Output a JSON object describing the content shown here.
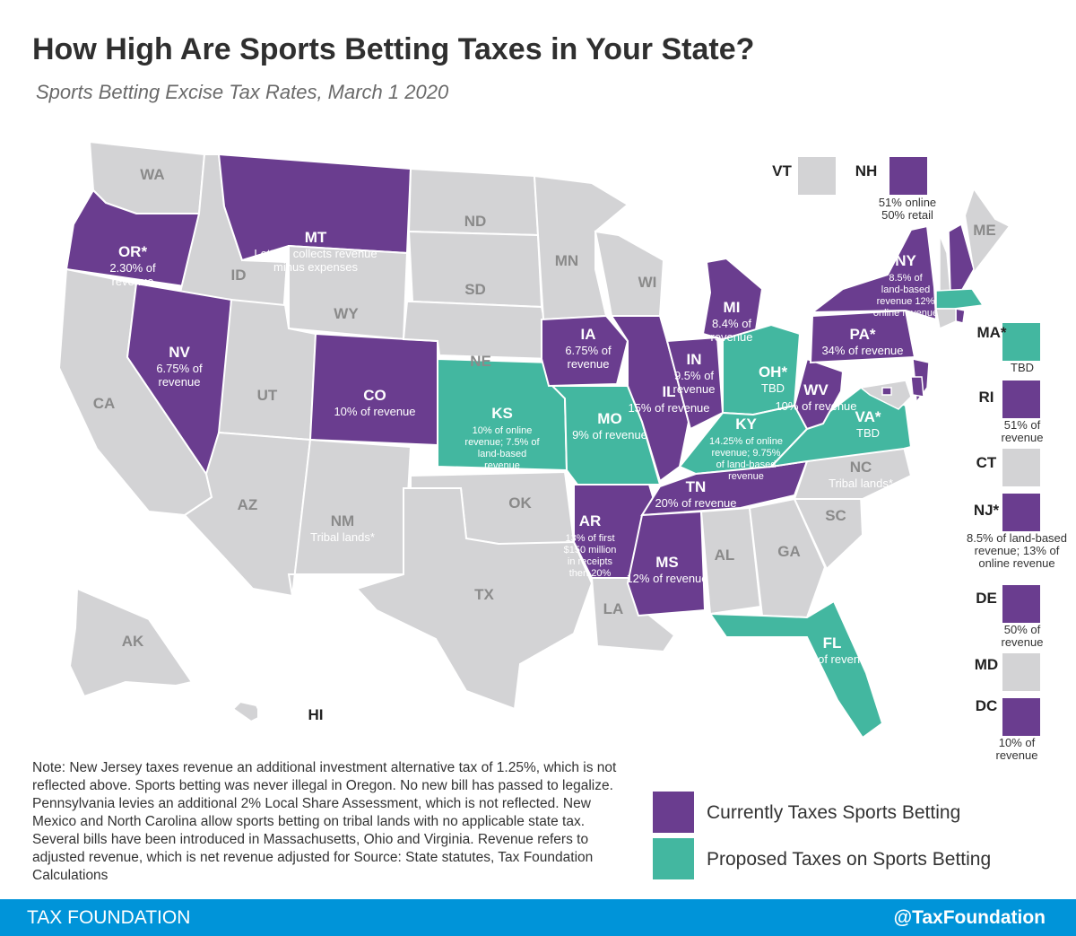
{
  "title": "How High Are Sports Betting Taxes in Your State?",
  "subtitle": "Sports Betting Excise Tax Rates, March 1 2020",
  "colors": {
    "current": "#6a3d8f",
    "proposed": "#43b7a0",
    "none": "#d3d3d5",
    "border": "#ffffff"
  },
  "states": [
    {
      "abbr": "WA",
      "status": "none",
      "label": ""
    },
    {
      "abbr": "OR*",
      "status": "current",
      "label": "2.30% of revenue"
    },
    {
      "abbr": "CA",
      "status": "none",
      "label": ""
    },
    {
      "abbr": "ID",
      "status": "none",
      "label": ""
    },
    {
      "abbr": "NV",
      "status": "current",
      "label": "6.75% of revenue"
    },
    {
      "abbr": "MT",
      "status": "current",
      "label": "Lottery collects revenue minus expenses"
    },
    {
      "abbr": "WY",
      "status": "none",
      "label": ""
    },
    {
      "abbr": "UT",
      "status": "none",
      "label": ""
    },
    {
      "abbr": "CO",
      "status": "current",
      "label": "10% of revenue"
    },
    {
      "abbr": "AZ",
      "status": "none",
      "label": ""
    },
    {
      "abbr": "NM",
      "status": "none",
      "label": "Tribal lands*"
    },
    {
      "abbr": "ND",
      "status": "none",
      "label": ""
    },
    {
      "abbr": "SD",
      "status": "none",
      "label": ""
    },
    {
      "abbr": "NE",
      "status": "none",
      "label": ""
    },
    {
      "abbr": "KS",
      "status": "proposed",
      "label": "10% of online revenue; 7.5% of land-based revenue"
    },
    {
      "abbr": "OK",
      "status": "none",
      "label": ""
    },
    {
      "abbr": "TX",
      "status": "none",
      "label": ""
    },
    {
      "abbr": "MN",
      "status": "none",
      "label": ""
    },
    {
      "abbr": "IA",
      "status": "current",
      "label": "6.75% of revenue"
    },
    {
      "abbr": "MO",
      "status": "proposed",
      "label": "9% of revenue"
    },
    {
      "abbr": "AR",
      "status": "current",
      "label": "13% of first $150 million in receipts then 20%"
    },
    {
      "abbr": "LA",
      "status": "none",
      "label": ""
    },
    {
      "abbr": "WI",
      "status": "none",
      "label": ""
    },
    {
      "abbr": "IL",
      "status": "current",
      "label": "15% of revenue"
    },
    {
      "abbr": "MI",
      "status": "current",
      "label": "8.4% of revenue"
    },
    {
      "abbr": "IN",
      "status": "current",
      "label": "9.5% of revenue"
    },
    {
      "abbr": "OH*",
      "status": "proposed",
      "label": "TBD"
    },
    {
      "abbr": "KY",
      "status": "proposed",
      "label": "14.25% of online revenue; 9.75% of land-based revenue"
    },
    {
      "abbr": "TN",
      "status": "current",
      "label": "20% of revenue"
    },
    {
      "abbr": "MS",
      "status": "current",
      "label": "12% of revenue"
    },
    {
      "abbr": "AL",
      "status": "none",
      "label": ""
    },
    {
      "abbr": "GA",
      "status": "none",
      "label": ""
    },
    {
      "abbr": "FL",
      "status": "proposed",
      "label": "15% of revenue"
    },
    {
      "abbr": "SC",
      "status": "none",
      "label": ""
    },
    {
      "abbr": "NC",
      "status": "none",
      "label": "Tribal lands*"
    },
    {
      "abbr": "VA*",
      "status": "proposed",
      "label": "TBD"
    },
    {
      "abbr": "WV",
      "status": "current",
      "label": "10% of revenue"
    },
    {
      "abbr": "PA*",
      "status": "current",
      "label": "34% of revenue"
    },
    {
      "abbr": "NY",
      "status": "current",
      "label": "8.5% of land-based revenue 12% online revenue"
    },
    {
      "abbr": "ME",
      "status": "none",
      "label": ""
    },
    {
      "abbr": "AK",
      "status": "none",
      "label": ""
    },
    {
      "abbr": "HI",
      "status": "none",
      "label": ""
    }
  ],
  "small_states": [
    {
      "abbr": "VT",
      "status": "none",
      "label": ""
    },
    {
      "abbr": "NH",
      "status": "current",
      "label": "51% online 50% retail"
    },
    {
      "abbr": "MA*",
      "status": "proposed",
      "label": "TBD"
    },
    {
      "abbr": "RI",
      "status": "current",
      "label": "51% of revenue"
    },
    {
      "abbr": "CT",
      "status": "none",
      "label": ""
    },
    {
      "abbr": "NJ*",
      "status": "current",
      "label": "8.5% of land-based revenue; 13% of online revenue"
    },
    {
      "abbr": "DE",
      "status": "current",
      "label": "50% of revenue"
    },
    {
      "abbr": "MD",
      "status": "none",
      "label": ""
    },
    {
      "abbr": "DC",
      "status": "current",
      "label": "10% of revenue"
    }
  ],
  "legend": [
    {
      "status": "current",
      "label": "Currently Taxes Sports Betting"
    },
    {
      "status": "proposed",
      "label": "Proposed Taxes on Sports Betting"
    }
  ],
  "note": "Note: New Jersey taxes revenue an additional investment alternative tax of 1.25%, which is not reflected above. Sports betting was never illegal in Oregon. No new bill has passed to legalize. Pennsylvania levies an additional 2% Local Share Assessment, which is not reflected. New Mexico and North Carolina allow sports betting on tribal lands with no applicable state tax. Several bills have been introduced in Massachusetts, Ohio and Virginia. Revenue refers to adjusted revenue, which is net revenue adjusted for Source: State statutes, Tax Foundation Calculations",
  "footer": {
    "left": "TAX FOUNDATION",
    "right": "@TaxFoundation"
  }
}
